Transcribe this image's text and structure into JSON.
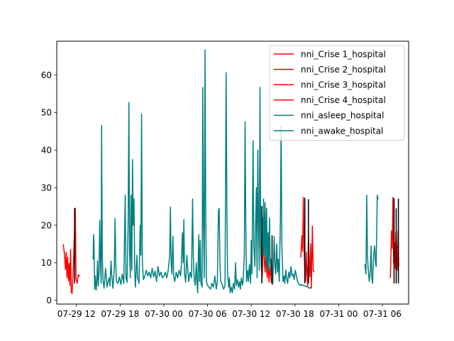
{
  "chart_data": {
    "type": "line",
    "title": "",
    "xlabel": "",
    "ylabel": "",
    "ylim": [
      -1,
      69
    ],
    "y_ticks": [
      0,
      10,
      20,
      30,
      40,
      50,
      60
    ],
    "x_ticks": [
      {
        "label": "07-29 12",
        "t": 12
      },
      {
        "label": "07-29 18",
        "t": 18
      },
      {
        "label": "07-30 00",
        "t": 24
      },
      {
        "label": "07-30 06",
        "t": 30
      },
      {
        "label": "07-30 12",
        "t": 36
      },
      {
        "label": "07-30 18",
        "t": 42
      },
      {
        "label": "07-31 00",
        "t": 48
      },
      {
        "label": "07-31 06",
        "t": 54
      }
    ],
    "xlim": [
      9.3,
      57.6
    ],
    "legend_position": "upper right",
    "colors": {
      "crise": "#ff0000",
      "asleep": "#008080",
      "awake": "#008080",
      "spike": "#000000"
    },
    "series": [
      {
        "name": "nni_Crise 1_hospital",
        "color": "#ff0000",
        "points": [
          [
            10.2,
            14.8
          ],
          [
            10.35,
            12.5
          ],
          [
            10.5,
            8.2
          ],
          [
            10.6,
            12.8
          ],
          [
            10.7,
            6.1
          ],
          [
            10.8,
            11.5
          ],
          [
            10.9,
            5.2
          ],
          [
            11.0,
            9.8
          ],
          [
            11.1,
            4.0
          ],
          [
            11.2,
            13.5
          ],
          [
            11.3,
            2.2
          ],
          [
            11.4,
            1.8
          ],
          [
            11.55,
            7.5
          ],
          [
            11.7,
            15.5
          ],
          [
            11.85,
            24.5
          ],
          [
            11.95,
            5.8
          ],
          [
            12.1,
            4.5
          ],
          [
            12.25,
            6.8
          ],
          [
            12.4,
            6.5
          ]
        ]
      },
      {
        "name": "nni_Crise 2_hospital",
        "color": "#ff0000",
        "points": [
          [
            37.3,
            15.0
          ],
          [
            37.4,
            8.5
          ],
          [
            37.5,
            6.2
          ],
          [
            37.6,
            12.0
          ],
          [
            37.7,
            17.0
          ],
          [
            37.8,
            10.0
          ],
          [
            37.9,
            7.5
          ],
          [
            38.0,
            13.5
          ],
          [
            38.1,
            8.0
          ],
          [
            38.2,
            6.0
          ],
          [
            38.3,
            11.0
          ],
          [
            38.45,
            4.8
          ],
          [
            38.6,
            9.2
          ],
          [
            38.75,
            5.0
          ],
          [
            38.9,
            4.2
          ]
        ]
      },
      {
        "name": "nni_Crise 3_hospital",
        "color": "#ff0000",
        "points": [
          [
            42.8,
            11.5
          ],
          [
            42.95,
            17.2
          ],
          [
            43.05,
            13.0
          ],
          [
            43.15,
            27.4
          ],
          [
            43.25,
            14.0
          ],
          [
            43.35,
            8.2
          ],
          [
            43.45,
            5.0
          ],
          [
            43.55,
            12.8
          ],
          [
            43.65,
            7.5
          ],
          [
            43.75,
            3.8
          ],
          [
            43.85,
            17.5
          ],
          [
            43.95,
            10.5
          ],
          [
            44.05,
            6.2
          ],
          [
            44.15,
            15.0
          ],
          [
            44.25,
            3.2
          ],
          [
            44.4,
            19.8
          ],
          [
            44.5,
            8.0
          ],
          [
            44.6,
            7.6
          ]
        ]
      },
      {
        "name": "nni_Crise 4_hospital",
        "color": "#ff0000",
        "points": [
          [
            55.1,
            6.0
          ],
          [
            55.25,
            18.5
          ],
          [
            55.35,
            13.8
          ],
          [
            55.45,
            27.4
          ],
          [
            55.55,
            10.0
          ],
          [
            55.65,
            15.5
          ],
          [
            55.75,
            8.5
          ],
          [
            55.85,
            18.0
          ],
          [
            55.95,
            14.0
          ],
          [
            56.05,
            8.0
          ],
          [
            56.15,
            18.5
          ],
          [
            56.25,
            9.0
          ]
        ]
      },
      {
        "name": "nni_asleep_hospital",
        "color": "#008080",
        "points": [
          [
            14.3,
            11.0
          ],
          [
            14.35,
            17.5
          ],
          [
            14.4,
            16.0
          ],
          [
            14.5,
            3.0
          ],
          [
            14.6,
            6.5
          ],
          [
            14.7,
            2.7
          ],
          [
            14.8,
            4.8
          ],
          [
            14.9,
            10.5
          ],
          [
            15.0,
            3.8
          ],
          [
            15.1,
            7.5
          ],
          [
            15.2,
            21.3
          ],
          [
            15.3,
            10.0
          ],
          [
            15.4,
            4.5
          ],
          [
            15.45,
            46.5
          ],
          [
            15.55,
            12.0
          ],
          [
            15.65,
            5.5
          ],
          [
            15.8,
            3.2
          ],
          [
            16.0,
            8.5
          ],
          [
            16.2,
            3.5
          ],
          [
            16.35,
            5.0
          ],
          [
            16.5,
            6.0
          ],
          [
            16.6,
            3.8
          ],
          [
            16.75,
            10.5
          ],
          [
            16.85,
            6.8
          ],
          [
            17.0,
            3.2
          ],
          [
            17.2,
            8.0
          ],
          [
            17.3,
            21.8
          ],
          [
            17.4,
            10.0
          ],
          [
            17.5,
            5.0
          ],
          [
            17.7,
            4.5
          ],
          [
            17.9,
            6.2
          ],
          [
            18.1,
            4.2
          ],
          [
            18.3,
            7.0
          ],
          [
            18.5,
            4.5
          ],
          [
            18.7,
            28.0
          ],
          [
            18.8,
            6.0
          ],
          [
            18.95,
            4.8
          ],
          [
            19.1,
            20.0
          ],
          [
            19.2,
            52.7
          ],
          [
            19.3,
            13.0
          ],
          [
            19.4,
            6.0
          ],
          [
            19.5,
            28.0
          ],
          [
            19.6,
            8.0
          ],
          [
            19.7,
            37.5
          ],
          [
            19.8,
            20.0
          ],
          [
            19.9,
            27.0
          ],
          [
            20.0,
            8.0
          ],
          [
            20.1,
            3.5
          ],
          [
            20.3,
            12.0
          ],
          [
            20.4,
            6.0
          ],
          [
            20.6,
            4.5
          ],
          [
            20.75,
            20.0
          ],
          [
            20.85,
            12.0
          ],
          [
            20.95,
            49.6
          ],
          [
            21.05,
            10.0
          ],
          [
            21.2,
            5.5
          ],
          [
            21.4,
            6.5
          ],
          [
            21.6,
            8.0
          ],
          [
            21.8,
            6.5
          ],
          [
            22.0,
            7.5
          ],
          [
            22.2,
            6.0
          ],
          [
            22.4,
            8.5
          ],
          [
            22.6,
            6.2
          ],
          [
            22.8,
            7.8
          ],
          [
            23.0,
            5.0
          ],
          [
            23.2,
            9.0
          ],
          [
            23.4,
            6.5
          ],
          [
            23.6,
            7.5
          ]
        ]
      },
      {
        "name": "nni_awake_hospital",
        "color": "#008080",
        "points": [
          [
            23.6,
            7.5
          ],
          [
            23.8,
            6.0
          ],
          [
            24.0,
            6.5
          ],
          [
            24.2,
            7.5
          ],
          [
            24.4,
            6.0
          ],
          [
            24.6,
            8.0
          ],
          [
            24.8,
            12.0
          ],
          [
            24.9,
            24.9
          ],
          [
            25.0,
            10.0
          ],
          [
            25.1,
            7.0
          ],
          [
            25.25,
            17.0
          ],
          [
            25.35,
            6.5
          ],
          [
            25.5,
            5.0
          ],
          [
            25.7,
            7.5
          ],
          [
            25.9,
            6.0
          ],
          [
            26.1,
            8.0
          ],
          [
            26.3,
            6.5
          ],
          [
            26.4,
            9.0
          ],
          [
            26.55,
            18.0
          ],
          [
            26.65,
            10.0
          ],
          [
            26.75,
            21.5
          ],
          [
            26.85,
            7.0
          ],
          [
            27.0,
            4.8
          ],
          [
            27.15,
            12.0
          ],
          [
            27.3,
            8.0
          ],
          [
            27.4,
            5.0
          ],
          [
            27.6,
            7.5
          ],
          [
            27.8,
            6.0
          ],
          [
            27.95,
            27.0
          ],
          [
            28.05,
            12.0
          ],
          [
            28.15,
            6.0
          ],
          [
            28.3,
            4.0
          ],
          [
            28.45,
            10.0
          ],
          [
            28.55,
            4.5
          ],
          [
            28.65,
            2.0
          ],
          [
            28.8,
            17.5
          ],
          [
            28.9,
            5.0
          ],
          [
            29.0,
            16.0
          ],
          [
            29.1,
            4.5
          ],
          [
            29.25,
            3.5
          ],
          [
            29.35,
            56.7
          ],
          [
            29.45,
            20.0
          ],
          [
            29.55,
            6.0
          ],
          [
            29.65,
            66.7
          ],
          [
            29.75,
            25.0
          ],
          [
            29.85,
            5.0
          ],
          [
            30.0,
            4.0
          ],
          [
            30.2,
            3.5
          ],
          [
            30.4,
            3.0
          ],
          [
            30.6,
            4.5
          ],
          [
            30.8,
            3.5
          ],
          [
            31.0,
            6.5
          ],
          [
            31.2,
            3.0
          ],
          [
            31.35,
            5.0
          ],
          [
            31.5,
            24.0
          ],
          [
            31.6,
            24.5
          ],
          [
            31.7,
            10.0
          ],
          [
            31.8,
            5.0
          ],
          [
            32.0,
            4.2
          ],
          [
            32.2,
            3.0
          ],
          [
            32.4,
            3.8
          ],
          [
            32.55,
            60.6
          ],
          [
            32.65,
            25.0
          ],
          [
            32.75,
            7.0
          ],
          [
            32.9,
            3.5
          ],
          [
            33.0,
            6.0
          ],
          [
            33.1,
            2.0
          ],
          [
            33.25,
            3.5
          ],
          [
            33.4,
            2.0
          ],
          [
            33.55,
            4.5
          ],
          [
            33.7,
            3.0
          ],
          [
            33.85,
            10.0
          ],
          [
            33.95,
            4.0
          ],
          [
            34.1,
            5.5
          ],
          [
            34.25,
            3.5
          ],
          [
            34.4,
            5.0
          ],
          [
            34.5,
            3.0
          ],
          [
            34.65,
            6.0
          ],
          [
            34.8,
            4.0
          ],
          [
            34.9,
            5.5
          ],
          [
            35.05,
            12.0
          ],
          [
            35.15,
            47.5
          ],
          [
            35.25,
            20.0
          ],
          [
            35.35,
            5.0
          ],
          [
            35.5,
            8.0
          ],
          [
            35.6,
            5.0
          ],
          [
            35.75,
            9.5
          ],
          [
            35.9,
            4.5
          ],
          [
            36.0,
            16.0
          ],
          [
            36.1,
            7.0
          ],
          [
            36.25,
            42.5
          ],
          [
            36.35,
            15.0
          ],
          [
            36.5,
            9.0
          ],
          [
            36.6,
            20.0
          ],
          [
            36.7,
            30.0
          ],
          [
            36.8,
            6.0
          ],
          [
            36.9,
            40.0
          ],
          [
            37.0,
            20.0
          ],
          [
            37.1,
            8.0
          ],
          [
            37.2,
            56.7
          ],
          [
            37.3,
            15.0
          ],
          [
            37.4,
            9.0
          ],
          [
            37.5,
            22.0
          ],
          [
            37.6,
            12.0
          ],
          [
            37.7,
            27.0
          ],
          [
            37.8,
            12.0
          ],
          [
            37.9,
            26.0
          ],
          [
            38.0,
            10.0
          ],
          [
            38.1,
            24.5
          ],
          [
            38.2,
            8.0
          ],
          [
            38.3,
            18.0
          ],
          [
            38.4,
            8.0
          ],
          [
            38.5,
            22.0
          ],
          [
            38.6,
            9.5
          ],
          [
            38.7,
            11.0
          ],
          [
            38.8,
            7.5
          ],
          [
            38.95,
            4.5
          ],
          [
            39.05,
            10.0
          ],
          [
            39.15,
            17.0
          ],
          [
            39.25,
            9.0
          ],
          [
            39.35,
            7.0
          ],
          [
            39.5,
            15.0
          ],
          [
            39.6,
            7.5
          ],
          [
            39.7,
            11.0
          ],
          [
            39.85,
            5.0
          ],
          [
            40.0,
            22.0
          ],
          [
            40.1,
            46.5
          ],
          [
            40.2,
            15.0
          ],
          [
            40.35,
            5.0
          ],
          [
            40.5,
            6.5
          ],
          [
            40.6,
            4.5
          ],
          [
            40.75,
            8.0
          ],
          [
            40.85,
            6.0
          ],
          [
            41.0,
            4.5
          ],
          [
            41.15,
            7.5
          ],
          [
            41.3,
            6.0
          ],
          [
            41.45,
            9.0
          ],
          [
            41.6,
            6.5
          ],
          [
            41.75,
            7.0
          ],
          [
            41.9,
            5.5
          ],
          [
            42.05,
            8.0
          ],
          [
            42.2,
            6.5
          ],
          [
            42.35,
            5.0
          ],
          [
            42.5,
            4.5
          ],
          [
            42.65,
            4.0
          ],
          [
            42.8,
            4.2
          ],
          [
            43.8,
            3.5
          ],
          [
            44.0,
            3.2
          ],
          [
            44.2,
            3.5
          ],
          [
            51.6,
            9.5
          ],
          [
            51.75,
            7.0
          ],
          [
            51.85,
            28.0
          ],
          [
            51.95,
            12.0
          ],
          [
            52.05,
            8.5
          ],
          [
            52.2,
            5.0
          ],
          [
            52.35,
            8.0
          ],
          [
            52.45,
            14.5
          ],
          [
            52.55,
            6.0
          ],
          [
            52.65,
            4.5
          ],
          [
            52.8,
            12.0
          ],
          [
            52.95,
            14.5
          ],
          [
            53.05,
            10.0
          ],
          [
            53.15,
            9.0
          ],
          [
            53.3,
            28.0
          ],
          [
            53.4,
            27.0
          ]
        ]
      }
    ],
    "spikes": [
      [
        11.75,
        24.6
      ],
      [
        37.45,
        25.1
      ],
      [
        38.85,
        17.3
      ],
      [
        43.35,
        27.3
      ],
      [
        43.85,
        26.9
      ],
      [
        55.6,
        27.2
      ],
      [
        55.9,
        24.5
      ],
      [
        56.2,
        27.1
      ]
    ]
  }
}
